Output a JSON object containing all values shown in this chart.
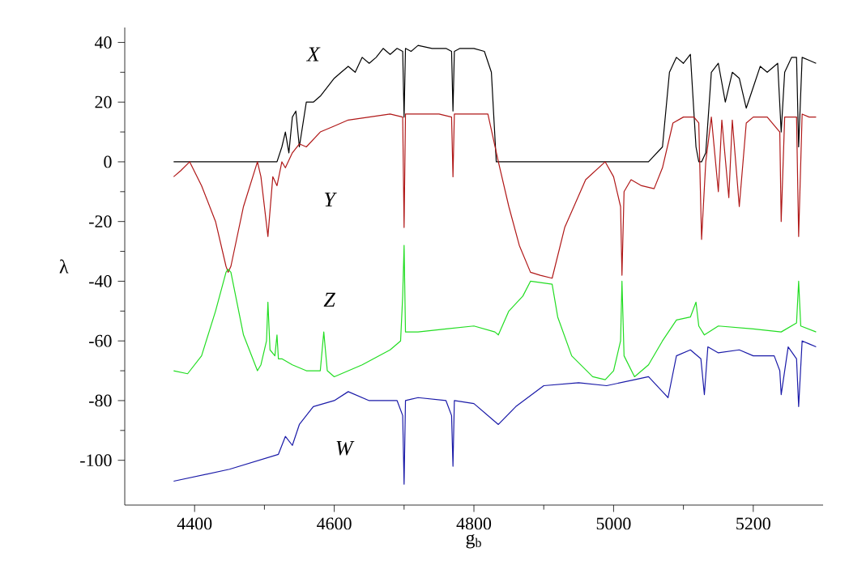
{
  "chart_data": {
    "type": "line",
    "xlabel": "g$_{b}$",
    "ylabel": "λ",
    "xlim": [
      4300,
      5300
    ],
    "ylim": [
      -115,
      45
    ],
    "xticks": [
      4400,
      4600,
      4800,
      5000,
      5200
    ],
    "yticks": [
      -100,
      -80,
      -60,
      -40,
      -20,
      0,
      20,
      40
    ],
    "grid": false,
    "legend": false,
    "marker": "none",
    "line_style": "solid",
    "series": [
      {
        "name": "X",
        "color": "#000000",
        "x": [
          4370,
          4400,
          4450,
          4500,
          4518,
          4525,
          4530,
          4535,
          4540,
          4545,
          4550,
          4560,
          4570,
          4580,
          4590,
          4600,
          4610,
          4620,
          4630,
          4640,
          4650,
          4660,
          4670,
          4680,
          4690,
          4698,
          4700,
          4702,
          4710,
          4720,
          4740,
          4760,
          4768,
          4770,
          4772,
          4780,
          4800,
          4815,
          4825,
          4832,
          4900,
          4990,
          5050,
          5070,
          5080,
          5090,
          5100,
          5110,
          5118,
          5122,
          5126,
          5132,
          5140,
          5150,
          5160,
          5170,
          5180,
          5190,
          5200,
          5210,
          5220,
          5235,
          5240,
          5245,
          5255,
          5262,
          5265,
          5270,
          5280,
          5290
        ],
        "values": [
          0,
          0,
          0,
          0,
          0,
          5,
          10,
          3,
          15,
          17,
          5,
          20,
          20,
          22,
          25,
          28,
          30,
          32,
          30,
          35,
          33,
          35,
          38,
          36,
          38,
          37,
          15,
          38,
          37,
          39,
          38,
          38,
          37,
          17,
          37,
          38,
          38,
          37,
          30,
          0,
          0,
          0,
          0,
          5,
          30,
          35,
          33,
          36,
          5,
          0,
          0,
          3,
          30,
          33,
          20,
          30,
          28,
          18,
          25,
          32,
          30,
          33,
          10,
          30,
          35,
          35,
          5,
          35,
          34,
          33
        ]
      },
      {
        "name": "Y",
        "color": "#b01818",
        "x": [
          4370,
          4380,
          4393,
          4410,
          4430,
          4445,
          4448,
          4452,
          4470,
          4490,
          4495,
          4505,
          4512,
          4518,
          4525,
          4530,
          4540,
          4550,
          4560,
          4580,
          4600,
          4620,
          4650,
          4680,
          4698,
          4700,
          4702,
          4720,
          4750,
          4768,
          4770,
          4772,
          4800,
          4820,
          4835,
          4850,
          4865,
          4881,
          4895,
          4912,
          4930,
          4960,
          4988,
          5000,
          5010,
          5012,
          5015,
          5025,
          5040,
          5058,
          5070,
          5085,
          5100,
          5115,
          5122,
          5126,
          5132,
          5140,
          5150,
          5155,
          5165,
          5170,
          5180,
          5190,
          5200,
          5220,
          5238,
          5240,
          5245,
          5262,
          5265,
          5270,
          5280,
          5290
        ],
        "values": [
          -5,
          -3,
          0,
          -8,
          -20,
          -35,
          -37,
          -35,
          -15,
          0,
          -5,
          -25,
          -5,
          -8,
          0,
          -2,
          3,
          6,
          5,
          10,
          12,
          14,
          15,
          16,
          15,
          -22,
          16,
          16,
          16,
          15,
          -5,
          16,
          16,
          16,
          0,
          -15,
          -28,
          -37,
          -38,
          -39,
          -22,
          -6,
          0,
          -5,
          -15,
          -38,
          -10,
          -6,
          -8,
          -9,
          -2,
          13,
          15,
          15,
          13,
          -26,
          0,
          15,
          -10,
          14,
          -12,
          14,
          -15,
          13,
          15,
          15,
          10,
          -20,
          15,
          15,
          -25,
          16,
          15,
          15
        ]
      },
      {
        "name": "Z",
        "color": "#22dd22",
        "x": [
          4370,
          4390,
          4410,
          4430,
          4445,
          4448,
          4452,
          4470,
          4490,
          4495,
          4503,
          4505,
          4508,
          4515,
          4518,
          4520,
          4525,
          4540,
          4560,
          4580,
          4585,
          4590,
          4600,
          4640,
          4680,
          4695,
          4698,
          4700,
          4702,
          4720,
          4760,
          4800,
          4830,
          4835,
          4850,
          4870,
          4881,
          4912,
          4920,
          4940,
          4970,
          4988,
          5000,
          5010,
          5012,
          5015,
          5030,
          5050,
          5070,
          5090,
          5110,
          5118,
          5122,
          5130,
          5150,
          5200,
          5240,
          5262,
          5265,
          5268,
          5290
        ],
        "values": [
          -70,
          -71,
          -65,
          -50,
          -37,
          -36,
          -37,
          -58,
          -70,
          -68,
          -60,
          -47,
          -63,
          -65,
          -58,
          -66,
          -66,
          -68,
          -70,
          -70,
          -57,
          -70,
          -72,
          -68,
          -63,
          -60,
          -45,
          -28,
          -57,
          -57,
          -56,
          -55,
          -57,
          -58,
          -50,
          -45,
          -40,
          -41,
          -52,
          -65,
          -72,
          -73,
          -70,
          -60,
          -40,
          -65,
          -72,
          -68,
          -60,
          -53,
          -52,
          -47,
          -55,
          -58,
          -55,
          -56,
          -57,
          -54,
          -40,
          -55,
          -57
        ]
      },
      {
        "name": "W",
        "color": "#1a1aa8",
        "x": [
          4370,
          4450,
          4520,
          4530,
          4540,
          4550,
          4570,
          4600,
          4620,
          4650,
          4690,
          4698,
          4700,
          4702,
          4720,
          4760,
          4768,
          4770,
          4772,
          4800,
          4835,
          4860,
          4900,
          4950,
          4990,
          5030,
          5050,
          5070,
          5078,
          5090,
          5110,
          5125,
          5130,
          5135,
          5150,
          5180,
          5200,
          5230,
          5238,
          5240,
          5250,
          5262,
          5265,
          5270,
          5280,
          5290
        ],
        "values": [
          -107,
          -103,
          -98,
          -92,
          -95,
          -88,
          -82,
          -80,
          -77,
          -80,
          -80,
          -85,
          -108,
          -80,
          -79,
          -80,
          -85,
          -102,
          -80,
          -81,
          -88,
          -82,
          -75,
          -74,
          -75,
          -73,
          -72,
          -77,
          -79,
          -65,
          -63,
          -66,
          -78,
          -62,
          -64,
          -63,
          -65,
          -65,
          -70,
          -78,
          -62,
          -66,
          -82,
          -60,
          -61,
          -62
        ]
      }
    ]
  }
}
